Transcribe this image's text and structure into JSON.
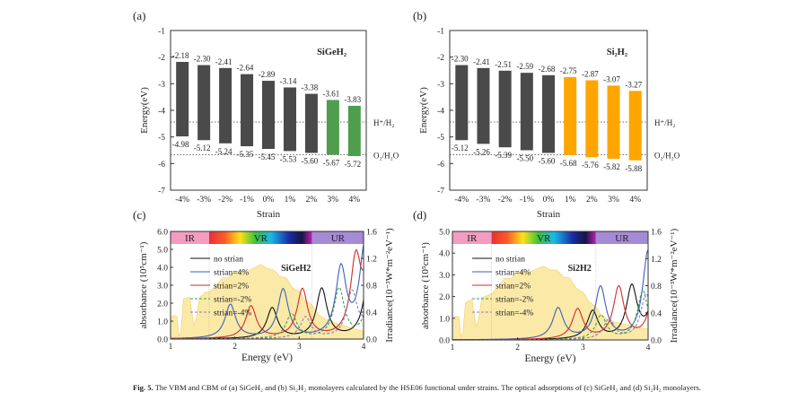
{
  "caption": {
    "label": "Fig. 5.",
    "text": "The VBM and CBM of (a) SiGeH₂ and (b) Si₂H₂ monolayers calculated by the HSE06 functional under strains. The optical adsorptions of (c) SiGeH₂ and (d) Si₂H₂ monolayers."
  },
  "chart_data": [
    {
      "panel": "(a)",
      "type": "bar",
      "title": "SiGeH₂",
      "xlabel": "Strain",
      "ylabel": "Energy(eV)",
      "ylim": [
        -7,
        -1
      ],
      "yticks": [
        "-1",
        "-2",
        "-3",
        "-4",
        "-5",
        "-6",
        "-7"
      ],
      "categories": [
        "-4%",
        "-3%",
        "-2%",
        "-1%",
        "0%",
        "1%",
        "2%",
        "3%",
        "4%"
      ],
      "cbm": [
        -2.18,
        -2.3,
        -2.41,
        -2.64,
        -2.89,
        -3.14,
        -3.38,
        -3.61,
        -3.83
      ],
      "vbm": [
        -4.98,
        -5.12,
        -5.24,
        -5.35,
        -5.45,
        -5.53,
        -5.6,
        -5.67,
        -5.72
      ],
      "cbm_labels": [
        "-2.18",
        "-2.30",
        "-2.41",
        "-2.64",
        "-2.89",
        "-3.14",
        "-3.38",
        "-3.61",
        "-3.83"
      ],
      "vbm_labels": [
        "-4.98",
        "-5.12",
        "-5.24",
        "-5.35",
        "-5.45",
        "-5.53",
        "-5.60",
        "-5.67",
        "-5.72"
      ],
      "bar_colors": [
        "#4a4a4a",
        "#4a4a4a",
        "#4a4a4a",
        "#4a4a4a",
        "#4a4a4a",
        "#4a4a4a",
        "#4a4a4a",
        "#4e9e4e",
        "#4e9e4e"
      ],
      "reference_lines": [
        {
          "label": "H⁺/H₂",
          "value": -4.44
        },
        {
          "label": "O₂/H₂O",
          "value": -5.67
        }
      ]
    },
    {
      "panel": "(b)",
      "type": "bar",
      "title": "Si₂H₂",
      "xlabel": "Strain",
      "ylabel": "Energy(eV)",
      "ylim": [
        -7,
        -1
      ],
      "yticks": [
        "-1",
        "-2",
        "-3",
        "-4",
        "-5",
        "-6",
        "-7"
      ],
      "categories": [
        "-4%",
        "-3%",
        "-2%",
        "-1%",
        "0%",
        "1%",
        "2%",
        "3%",
        "4%"
      ],
      "cbm": [
        -2.3,
        -2.41,
        -2.51,
        -2.59,
        -2.68,
        -2.75,
        -2.87,
        -3.07,
        -3.27
      ],
      "vbm": [
        -5.12,
        -5.26,
        -5.39,
        -5.5,
        -5.6,
        -5.68,
        -5.76,
        -5.82,
        -5.88
      ],
      "cbm_labels": [
        "-2.30",
        "-2.41",
        "-2.51",
        "-2.59",
        "-2.68",
        "-2.75",
        "-2.87",
        "-3.07",
        "-3.27"
      ],
      "vbm_labels": [
        "-5.12",
        "-5.26",
        "-5.39",
        "-5.50",
        "-5.60",
        "-5.68",
        "-5.76",
        "-5.82",
        "-5.88"
      ],
      "bar_colors": [
        "#4a4a4a",
        "#4a4a4a",
        "#4a4a4a",
        "#4a4a4a",
        "#4a4a4a",
        "#ffa500",
        "#ffa500",
        "#ffa500",
        "#ffa500"
      ],
      "reference_lines": [
        {
          "label": "H⁺/H₂",
          "value": -4.44
        },
        {
          "label": "O₂/H₂O",
          "value": -5.67
        }
      ]
    },
    {
      "panel": "(c)",
      "type": "line",
      "title": "SiGeH2",
      "xlabel": "Energy (eV)",
      "ylabel": "absorbance (10⁵cm⁻¹)",
      "y2label": "Irradiance(10⁻³W*m⁻²eV⁻¹)",
      "xlim": [
        1,
        4
      ],
      "ylim": [
        0,
        6
      ],
      "y2lim": [
        0,
        1.6
      ],
      "xticks": [
        "1",
        "2",
        "3",
        "4"
      ],
      "yticks": [
        "0.0",
        "1.0",
        "2.0",
        "3.0",
        "4.0",
        "5.0",
        "6.0"
      ],
      "y2ticks": [
        "0.0",
        "0.4",
        "0.8",
        "1.2",
        "1.6"
      ],
      "regions": [
        {
          "label": "IR",
          "from": 1,
          "to": 1.6,
          "color": "#f29cc0"
        },
        {
          "label": "VR",
          "from": 1.6,
          "to": 3.2,
          "color": "spectrum"
        },
        {
          "label": "UR",
          "from": 3.2,
          "to": 4,
          "color": "#a58ad6"
        }
      ],
      "series": [
        {
          "name": "no strian",
          "color": "#111111",
          "dashed": false,
          "peaks": [
            [
              2.58,
              1.85
            ],
            [
              3.35,
              3.0
            ],
            [
              4.1,
              4.6
            ]
          ]
        },
        {
          "name": "strian=4%",
          "color": "#3a62b8",
          "dashed": false,
          "peaks": [
            [
              1.93,
              2.05
            ],
            [
              2.75,
              2.95
            ],
            [
              3.65,
              4.15
            ],
            [
              4.02,
              5.6
            ]
          ]
        },
        {
          "name": "strian=2%",
          "color": "#d42a2a",
          "dashed": false,
          "peaks": [
            [
              2.25,
              1.95
            ],
            [
              3.05,
              2.95
            ],
            [
              3.88,
              4.55
            ],
            [
              4.1,
              4.6
            ]
          ]
        },
        {
          "name": "strian=-2%",
          "color": "#3aa04a",
          "dashed": true,
          "peaks": [
            [
              2.88,
              1.5
            ],
            [
              3.62,
              3.0
            ],
            [
              4.1,
              2.5
            ]
          ]
        },
        {
          "name": "strian=-4%",
          "color": "#8a7cc0",
          "dashed": true,
          "peaks": [
            [
              3.1,
              1.3
            ],
            [
              3.82,
              2.75
            ],
            [
              4.15,
              2.5
            ]
          ]
        }
      ],
      "irradiance": [
        [
          1.0,
          0.32
        ],
        [
          1.05,
          0.35
        ],
        [
          1.1,
          0.34
        ],
        [
          1.13,
          0.05
        ],
        [
          1.16,
          0.1
        ],
        [
          1.2,
          0.6
        ],
        [
          1.3,
          0.62
        ],
        [
          1.36,
          0.2
        ],
        [
          1.4,
          0.3
        ],
        [
          1.45,
          0.62
        ],
        [
          1.55,
          0.7
        ],
        [
          1.6,
          0.7
        ],
        [
          1.7,
          0.8
        ],
        [
          1.8,
          0.88
        ],
        [
          1.9,
          0.93
        ],
        [
          2.0,
          0.98
        ],
        [
          2.2,
          1.03
        ],
        [
          2.4,
          1.08
        ],
        [
          2.5,
          1.07
        ],
        [
          2.6,
          1.0
        ],
        [
          2.7,
          0.95
        ],
        [
          2.8,
          0.88
        ],
        [
          2.9,
          0.78
        ],
        [
          3.0,
          0.68
        ],
        [
          3.1,
          0.58
        ],
        [
          3.2,
          0.48
        ],
        [
          3.3,
          0.38
        ],
        [
          3.4,
          0.3
        ],
        [
          3.5,
          0.26
        ],
        [
          3.6,
          0.23
        ],
        [
          3.7,
          0.2
        ],
        [
          3.8,
          0.17
        ],
        [
          3.9,
          0.14
        ],
        [
          4.0,
          0.12
        ]
      ]
    },
    {
      "panel": "(d)",
      "type": "line",
      "title": "Si2H2",
      "xlabel": "Energy (eV)",
      "ylabel": "absorbance (10⁵cm⁻¹)",
      "y2label": "Irradiance(10⁻³W*m⁻²eV⁻¹)",
      "xlim": [
        1,
        4
      ],
      "ylim": [
        0,
        5
      ],
      "y2lim": [
        0,
        1.6
      ],
      "xticks": [
        "1",
        "2",
        "3",
        "4"
      ],
      "yticks": [
        "0.0",
        "1.0",
        "2.0",
        "3.0",
        "4.0",
        "5.0"
      ],
      "y2ticks": [
        "0.0",
        "0.4",
        "0.8",
        "1.2",
        "1.6"
      ],
      "regions": [
        {
          "label": "IR",
          "from": 1,
          "to": 1.6,
          "color": "#f29cc0"
        },
        {
          "label": "VR",
          "from": 1.6,
          "to": 3.2,
          "color": "spectrum"
        },
        {
          "label": "UR",
          "from": 3.2,
          "to": 4,
          "color": "#a58ad6"
        }
      ],
      "series": [
        {
          "name": "no strian",
          "color": "#111111",
          "dashed": false,
          "peaks": [
            [
              3.15,
              1.4
            ],
            [
              3.75,
              2.6
            ],
            [
              4.1,
              2.2
            ]
          ]
        },
        {
          "name": "strian=4%",
          "color": "#3a62b8",
          "dashed": false,
          "peaks": [
            [
              2.62,
              1.55
            ],
            [
              3.27,
              2.6
            ],
            [
              4.0,
              4.45
            ]
          ]
        },
        {
          "name": "strian=2%",
          "color": "#d42a2a",
          "dashed": false,
          "peaks": [
            [
              2.92,
              1.5
            ],
            [
              3.55,
              2.6
            ],
            [
              4.1,
              2.6
            ]
          ]
        },
        {
          "name": "strian=-2%",
          "color": "#3aa04a",
          "dashed": true,
          "peaks": [
            [
              3.28,
              1.2
            ],
            [
              3.92,
              2.45
            ]
          ]
        },
        {
          "name": "strian=-4%",
          "color": "#8a7cc0",
          "dashed": true,
          "peaks": [
            [
              3.4,
              1.0
            ],
            [
              3.97,
              2.3
            ]
          ]
        }
      ],
      "irradiance": [
        [
          1.0,
          0.32
        ],
        [
          1.05,
          0.35
        ],
        [
          1.1,
          0.34
        ],
        [
          1.13,
          0.05
        ],
        [
          1.16,
          0.1
        ],
        [
          1.2,
          0.55
        ],
        [
          1.3,
          0.6
        ],
        [
          1.36,
          0.2
        ],
        [
          1.4,
          0.3
        ],
        [
          1.45,
          0.62
        ],
        [
          1.55,
          0.66
        ],
        [
          1.6,
          0.68
        ],
        [
          1.7,
          0.8
        ],
        [
          1.8,
          0.88
        ],
        [
          1.9,
          0.93
        ],
        [
          2.0,
          0.98
        ],
        [
          2.2,
          1.03
        ],
        [
          2.4,
          1.06
        ],
        [
          2.5,
          1.05
        ],
        [
          2.6,
          1.0
        ],
        [
          2.7,
          0.95
        ],
        [
          2.8,
          0.88
        ],
        [
          2.9,
          0.78
        ],
        [
          3.0,
          0.68
        ],
        [
          3.1,
          0.58
        ],
        [
          3.2,
          0.46
        ],
        [
          3.3,
          0.36
        ],
        [
          3.4,
          0.3
        ],
        [
          3.5,
          0.26
        ],
        [
          3.6,
          0.24
        ],
        [
          3.7,
          0.22
        ],
        [
          3.8,
          0.2
        ],
        [
          3.9,
          0.18
        ],
        [
          4.0,
          0.16
        ]
      ]
    }
  ]
}
